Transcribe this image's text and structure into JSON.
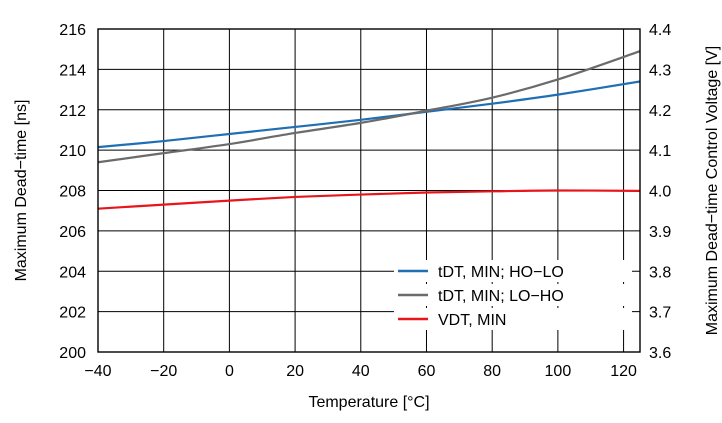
{
  "chart_data": {
    "type": "line",
    "xlabel": "Temperature [°C]",
    "ylabel": "Maximum Dead−time [ns]",
    "y2label": "Maximum Dead−time Control Voltage [V]",
    "xlim": [
      -40,
      125
    ],
    "ylim": [
      200,
      216
    ],
    "y2lim": [
      3.6,
      4.4
    ],
    "x_ticks": [
      -40,
      -20,
      0,
      20,
      40,
      60,
      80,
      100,
      120
    ],
    "x_tick_labels": [
      "−40",
      "−20",
      "0",
      "20",
      "40",
      "60",
      "80",
      "100",
      "120"
    ],
    "y_ticks": [
      200,
      202,
      204,
      206,
      208,
      210,
      212,
      214,
      216
    ],
    "y_tick_labels": [
      "200",
      "202",
      "204",
      "206",
      "208",
      "210",
      "212",
      "214",
      "216"
    ],
    "y2_ticks": [
      3.6,
      3.7,
      3.8,
      3.9,
      4.0,
      4.1,
      4.2,
      4.3,
      4.4
    ],
    "y2_tick_labels": [
      "3.6",
      "3.7",
      "3.8",
      "3.9",
      "4.0",
      "4.1",
      "4.2",
      "4.3",
      "4.4"
    ],
    "grid": true,
    "legend_position": "bottom-right",
    "series": [
      {
        "name": "tDT, MIN; HO−LO",
        "color": "#1f6fb5",
        "axis": "left",
        "x": [
          -40,
          -20,
          0,
          20,
          40,
          60,
          80,
          100,
          125
        ],
        "y": [
          210.15,
          210.45,
          210.8,
          211.15,
          211.5,
          211.9,
          212.3,
          212.75,
          213.4
        ]
      },
      {
        "name": "tDT, MIN; LO−HO",
        "color": "#6b6b6b",
        "axis": "left",
        "x": [
          -40,
          -20,
          0,
          20,
          40,
          60,
          80,
          100,
          125
        ],
        "y": [
          209.4,
          209.85,
          210.3,
          210.85,
          211.35,
          211.95,
          212.6,
          213.5,
          214.9
        ]
      },
      {
        "name": "VDT, MIN",
        "color": "#e8161b",
        "axis": "right",
        "x": [
          -40,
          -20,
          0,
          20,
          40,
          60,
          80,
          100,
          125
        ],
        "y": [
          3.955,
          3.965,
          3.975,
          3.984,
          3.99,
          3.995,
          3.998,
          4.0,
          3.999
        ]
      }
    ]
  }
}
